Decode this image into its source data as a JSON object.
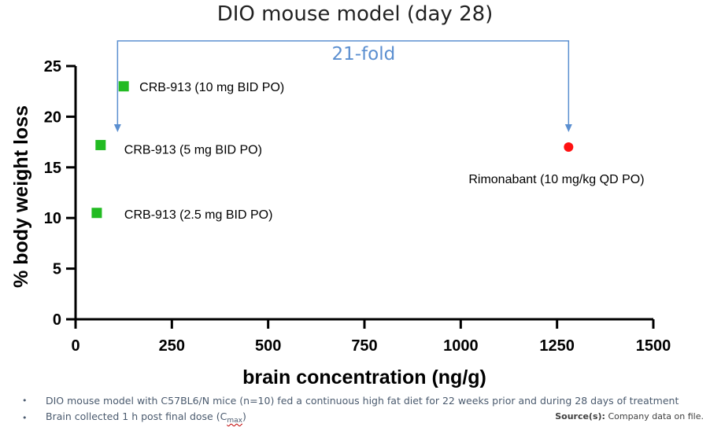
{
  "chart_data": {
    "type": "scatter",
    "title": "DIO mouse model (day 28)",
    "xlabel": "brain concentration (ng/g)",
    "ylabel": "% body weight loss",
    "xlim": [
      0,
      1500
    ],
    "ylim": [
      0,
      25
    ],
    "xticks": [
      0,
      250,
      500,
      750,
      1000,
      1250,
      1500
    ],
    "yticks": [
      0,
      5,
      10,
      15,
      20,
      25
    ],
    "series": [
      {
        "name": "CRB-913",
        "marker": "square",
        "color": "#22bb22",
        "points": [
          {
            "x": 125,
            "y": 23,
            "label": "CRB-913 (10 mg BID PO)"
          },
          {
            "x": 65,
            "y": 17.2,
            "label": "CRB-913 (5 mg BID PO)"
          },
          {
            "x": 55,
            "y": 10.5,
            "label": "CRB-913 (2.5 mg BID PO)"
          }
        ]
      },
      {
        "name": "Rimonabant",
        "marker": "circle",
        "color": "#ff1111",
        "points": [
          {
            "x": 1280,
            "y": 17,
            "label": "Rimonabant (10 mg/kg QD PO)"
          }
        ]
      }
    ],
    "annotation": {
      "text": "21-fold",
      "from_x": 60,
      "to_x": 1280,
      "color": "#5b8fd0"
    }
  },
  "footnotes": {
    "bullet": "•",
    "items": [
      "DIO mouse model with C57BL6/N mice (n=10) fed a continuous high fat diet for 22 weeks prior and during 28 days of treatment",
      "Brain collected 1 h post final dose (C"
    ],
    "cmax_sub": "max",
    "cmax_close": ")"
  },
  "source": {
    "label": "Source(s):",
    "text": "Company data on file."
  }
}
